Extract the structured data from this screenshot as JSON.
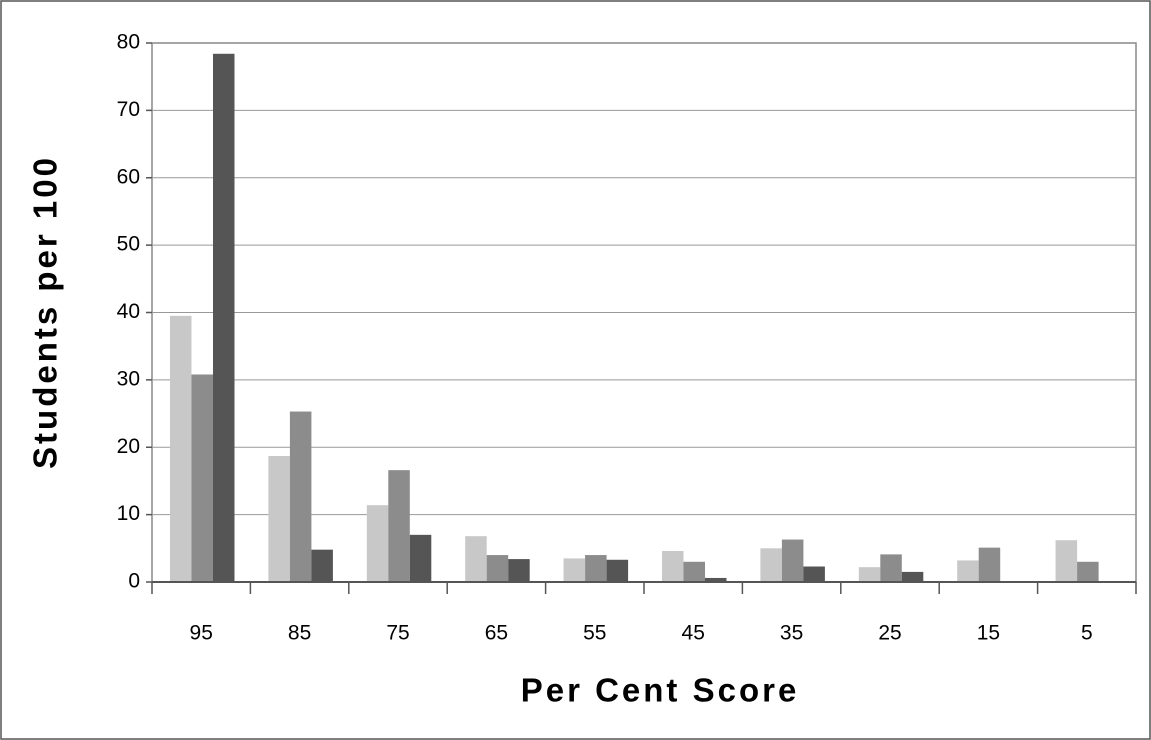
{
  "chart_data": {
    "type": "bar",
    "x_label": "Per Cent Score",
    "y_label": "Students per 100",
    "categories": [
      "95",
      "85",
      "75",
      "65",
      "55",
      "45",
      "35",
      "25",
      "15",
      "5"
    ],
    "series": [
      {
        "color": "#c8c8c8",
        "values": [
          39.5,
          18.7,
          11.4,
          6.8,
          3.5,
          4.6,
          5.0,
          2.2,
          3.2,
          6.2
        ]
      },
      {
        "color": "#8c8c8c",
        "values": [
          30.8,
          25.3,
          16.6,
          4.0,
          4.0,
          3.0,
          6.3,
          4.1,
          5.1,
          3.0
        ]
      },
      {
        "color": "#555555",
        "values": [
          78.4,
          4.8,
          7.0,
          3.4,
          3.3,
          0.6,
          2.3,
          1.5,
          0,
          0
        ]
      }
    ],
    "ylim": [
      0,
      80
    ],
    "yticks": [
      0,
      10,
      20,
      30,
      40,
      50,
      60,
      70,
      80
    ],
    "grid": true
  }
}
